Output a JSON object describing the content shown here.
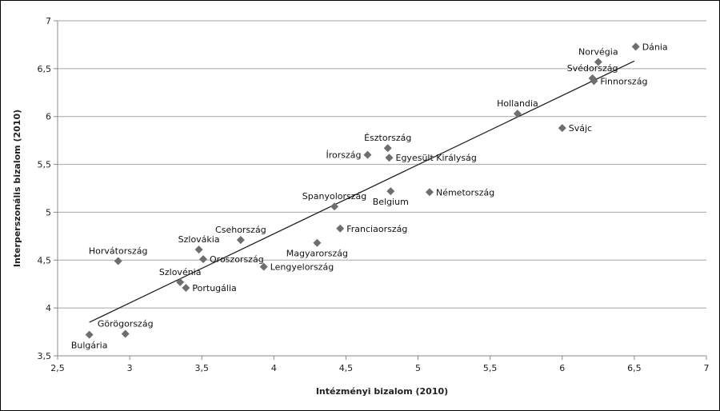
{
  "chart_data": {
    "type": "scatter",
    "xlabel": "Intézményi bizalom (2010)",
    "ylabel": "Interperszonális bizalom (2010)",
    "xlim": [
      2.5,
      7
    ],
    "ylim": [
      3.5,
      7
    ],
    "x_ticks": [
      "2,5",
      "3",
      "3,5",
      "4",
      "4,5",
      "5",
      "5,5",
      "6",
      "6,5",
      "7"
    ],
    "y_ticks": [
      "3,5",
      "4",
      "4,5",
      "5",
      "5,5",
      "6",
      "6,5",
      "7"
    ],
    "grid": "horizontal",
    "marker_color": "#6e6e6e",
    "trendline": {
      "type": "linear",
      "x": [
        2.72,
        6.5
      ],
      "y": [
        3.85,
        6.58
      ]
    },
    "points": [
      {
        "label": "Dánia",
        "x": 6.51,
        "y": 6.73,
        "anchor": "right"
      },
      {
        "label": "Norvégia",
        "x": 6.25,
        "y": 6.57,
        "anchor": "above"
      },
      {
        "label": "Svédország",
        "x": 6.21,
        "y": 6.4,
        "anchor": "above"
      },
      {
        "label": "Finnország",
        "x": 6.22,
        "y": 6.37,
        "anchor": "right"
      },
      {
        "label": "Hollandia",
        "x": 5.69,
        "y": 6.03,
        "anchor": "above"
      },
      {
        "label": "Svájc",
        "x": 6.0,
        "y": 5.88,
        "anchor": "right"
      },
      {
        "label": "Észtország",
        "x": 4.79,
        "y": 5.67,
        "anchor": "above"
      },
      {
        "label": "Írország",
        "x": 4.65,
        "y": 5.6,
        "anchor": "left"
      },
      {
        "label": "Egyesült Királyság",
        "x": 4.8,
        "y": 5.57,
        "anchor": "right"
      },
      {
        "label": "Belgium",
        "x": 4.81,
        "y": 5.22,
        "anchor": "below"
      },
      {
        "label": "Németország",
        "x": 5.08,
        "y": 5.21,
        "anchor": "right"
      },
      {
        "label": "Spanyolország",
        "x": 4.42,
        "y": 5.06,
        "anchor": "above"
      },
      {
        "label": "Franciaország",
        "x": 4.46,
        "y": 4.83,
        "anchor": "right"
      },
      {
        "label": "Csehország",
        "x": 3.77,
        "y": 4.71,
        "anchor": "above"
      },
      {
        "label": "Magyarország",
        "x": 4.3,
        "y": 4.68,
        "anchor": "below"
      },
      {
        "label": "Szlovákia",
        "x": 3.48,
        "y": 4.61,
        "anchor": "above"
      },
      {
        "label": "Oroszország",
        "x": 3.51,
        "y": 4.51,
        "anchor": "right"
      },
      {
        "label": "Horvátország",
        "x": 2.92,
        "y": 4.49,
        "anchor": "above"
      },
      {
        "label": "Lengyelország",
        "x": 3.93,
        "y": 4.43,
        "anchor": "right"
      },
      {
        "label": "Szlovénia",
        "x": 3.35,
        "y": 4.27,
        "anchor": "above"
      },
      {
        "label": "Portugália",
        "x": 3.39,
        "y": 4.21,
        "anchor": "right"
      },
      {
        "label": "Görögország",
        "x": 2.97,
        "y": 3.73,
        "anchor": "above"
      },
      {
        "label": "Bulgária",
        "x": 2.72,
        "y": 3.72,
        "anchor": "below"
      }
    ]
  }
}
